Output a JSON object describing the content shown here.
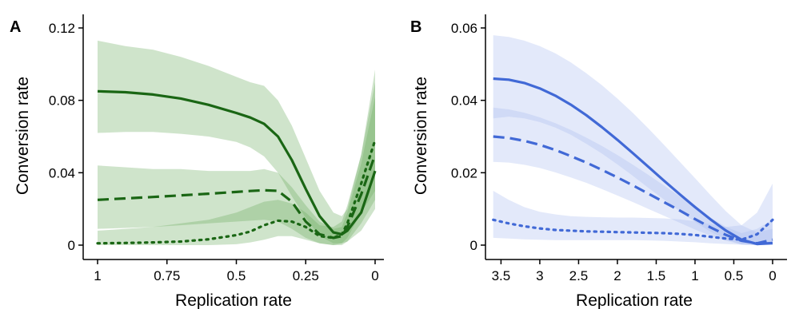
{
  "chart_data": [
    {
      "panel": "A",
      "type": "line",
      "xlabel": "Replication rate",
      "ylabel": "Conversion rate",
      "xlim": [
        1,
        0
      ],
      "ylim": [
        0,
        0.12
      ],
      "x_ticks": [
        "1",
        "0.75",
        "0.5",
        "0.25",
        "0"
      ],
      "y_ticks": [
        "0",
        "0.04",
        "0.08",
        "0.12"
      ],
      "color": "#1a6614",
      "band_color": "#6aaa5e",
      "x": [
        1,
        0.9,
        0.8,
        0.7,
        0.6,
        0.5,
        0.45,
        0.4,
        0.35,
        0.3,
        0.25,
        0.2,
        0.15,
        0.12,
        0.1,
        0.05,
        0
      ],
      "series": [
        {
          "style": "solid",
          "values": [
            0.085,
            0.0845,
            0.0832,
            0.081,
            0.0775,
            0.073,
            0.0705,
            0.067,
            0.06,
            0.047,
            0.031,
            0.016,
            0.007,
            0.006,
            0.008,
            0.018,
            0.041
          ],
          "lower": [
            0.062,
            0.0625,
            0.0625,
            0.0615,
            0.06,
            0.057,
            0.054,
            0.049,
            0.04,
            0.027,
            0.015,
            0.005,
            0.001,
            0.001,
            0.002,
            0.008,
            0.02
          ],
          "upper": [
            0.113,
            0.11,
            0.108,
            0.104,
            0.099,
            0.093,
            0.09,
            0.088,
            0.08,
            0.066,
            0.048,
            0.03,
            0.018,
            0.016,
            0.02,
            0.05,
            0.097
          ]
        },
        {
          "style": "dashed",
          "values": [
            0.025,
            0.0258,
            0.0266,
            0.0275,
            0.0284,
            0.0294,
            0.0299,
            0.0303,
            0.03,
            0.024,
            0.013,
            0.006,
            0.004,
            0.005,
            0.01,
            0.028,
            0.05
          ],
          "lower": [
            0.009,
            0.0095,
            0.01,
            0.011,
            0.012,
            0.013,
            0.0135,
            0.014,
            0.013,
            0.009,
            0.004,
            0.001,
            0.0,
            0.0,
            0.002,
            0.012,
            0.025
          ],
          "upper": [
            0.044,
            0.043,
            0.042,
            0.042,
            0.041,
            0.041,
            0.041,
            0.042,
            0.04,
            0.032,
            0.022,
            0.013,
            0.009,
            0.01,
            0.018,
            0.045,
            0.082
          ]
        },
        {
          "style": "dotted",
          "values": [
            0.001,
            0.0012,
            0.0015,
            0.002,
            0.0032,
            0.0055,
            0.0075,
            0.011,
            0.0135,
            0.013,
            0.01,
            0.005,
            0.004,
            0.006,
            0.012,
            0.034,
            0.058
          ],
          "lower": [
            0.0,
            0.0,
            0.0,
            0.0,
            0.0,
            0.0005,
            0.0015,
            0.003,
            0.005,
            0.005,
            0.003,
            0.001,
            0.0,
            0.001,
            0.004,
            0.018,
            0.03
          ],
          "upper": [
            0.008,
            0.009,
            0.01,
            0.012,
            0.014,
            0.018,
            0.021,
            0.024,
            0.025,
            0.023,
            0.018,
            0.011,
            0.01,
            0.013,
            0.022,
            0.05,
            0.09
          ]
        }
      ]
    },
    {
      "panel": "B",
      "type": "line",
      "xlabel": "Replication rate",
      "ylabel": "Conversion rate",
      "xlim": [
        3.7,
        0
      ],
      "ylim": [
        0,
        0.06
      ],
      "x_ticks": [
        "3.5",
        "3",
        "2.5",
        "2",
        "1.5",
        "1",
        "0.5",
        "0"
      ],
      "y_ticks": [
        "0",
        "0.02",
        "0.04",
        "0.06"
      ],
      "color": "#4169d6",
      "band_color": "#a9baf0",
      "x": [
        3.6,
        3.4,
        3.2,
        3.0,
        2.8,
        2.6,
        2.4,
        2.2,
        2.0,
        1.8,
        1.6,
        1.4,
        1.2,
        1.0,
        0.8,
        0.6,
        0.4,
        0.2,
        0
      ],
      "series": [
        {
          "style": "solid",
          "values": [
            0.046,
            0.0457,
            0.0448,
            0.0433,
            0.0413,
            0.0388,
            0.0359,
            0.0326,
            0.0291,
            0.0254,
            0.0216,
            0.0178,
            0.0141,
            0.0105,
            0.0071,
            0.004,
            0.0015,
            0.0003,
            0.0006
          ],
          "lower": [
            0.035,
            0.0355,
            0.035,
            0.034,
            0.0325,
            0.0305,
            0.028,
            0.0253,
            0.0223,
            0.0191,
            0.0158,
            0.0126,
            0.0094,
            0.0064,
            0.0037,
            0.0015,
            0.0002,
            0.0,
            0.0
          ],
          "upper": [
            0.058,
            0.0575,
            0.0565,
            0.055,
            0.053,
            0.0505,
            0.0475,
            0.0442,
            0.0405,
            0.0365,
            0.0322,
            0.0277,
            0.0231,
            0.0185,
            0.0138,
            0.0093,
            0.0055,
            0.0035,
            0.0045
          ]
        },
        {
          "style": "dashed",
          "values": [
            0.03,
            0.0296,
            0.0288,
            0.0277,
            0.0263,
            0.0246,
            0.0228,
            0.0208,
            0.0187,
            0.0165,
            0.0142,
            0.0119,
            0.0096,
            0.0072,
            0.0049,
            0.0028,
            0.0012,
            0.0005,
            0.0015
          ],
          "lower": [
            0.023,
            0.0228,
            0.0222,
            0.0213,
            0.0201,
            0.0187,
            0.0172,
            0.0155,
            0.0137,
            0.0119,
            0.01,
            0.0081,
            0.0062,
            0.0043,
            0.0026,
            0.0012,
            0.0002,
            0.0,
            0.0
          ],
          "upper": [
            0.038,
            0.0375,
            0.0366,
            0.0353,
            0.0337,
            0.0318,
            0.0297,
            0.0274,
            0.0249,
            0.0222,
            0.0194,
            0.0165,
            0.0135,
            0.0105,
            0.0076,
            0.005,
            0.0033,
            0.0045,
            0.007
          ]
        },
        {
          "style": "dotted",
          "values": [
            0.007,
            0.006,
            0.0052,
            0.0046,
            0.0042,
            0.004,
            0.0038,
            0.0037,
            0.0036,
            0.0035,
            0.0034,
            0.0033,
            0.0031,
            0.0028,
            0.0023,
            0.0018,
            0.0015,
            0.003,
            0.007
          ],
          "lower": [
            0.002,
            0.0018,
            0.0016,
            0.0015,
            0.0014,
            0.0014,
            0.0014,
            0.0014,
            0.0014,
            0.0014,
            0.0013,
            0.0012,
            0.001,
            0.0008,
            0.0005,
            0.0003,
            0.0001,
            0.0,
            0.0
          ],
          "upper": [
            0.015,
            0.0125,
            0.0105,
            0.0092,
            0.0085,
            0.008,
            0.0078,
            0.0077,
            0.0076,
            0.0076,
            0.0075,
            0.0074,
            0.0071,
            0.0066,
            0.0058,
            0.005,
            0.0055,
            0.009,
            0.017
          ]
        }
      ]
    }
  ]
}
